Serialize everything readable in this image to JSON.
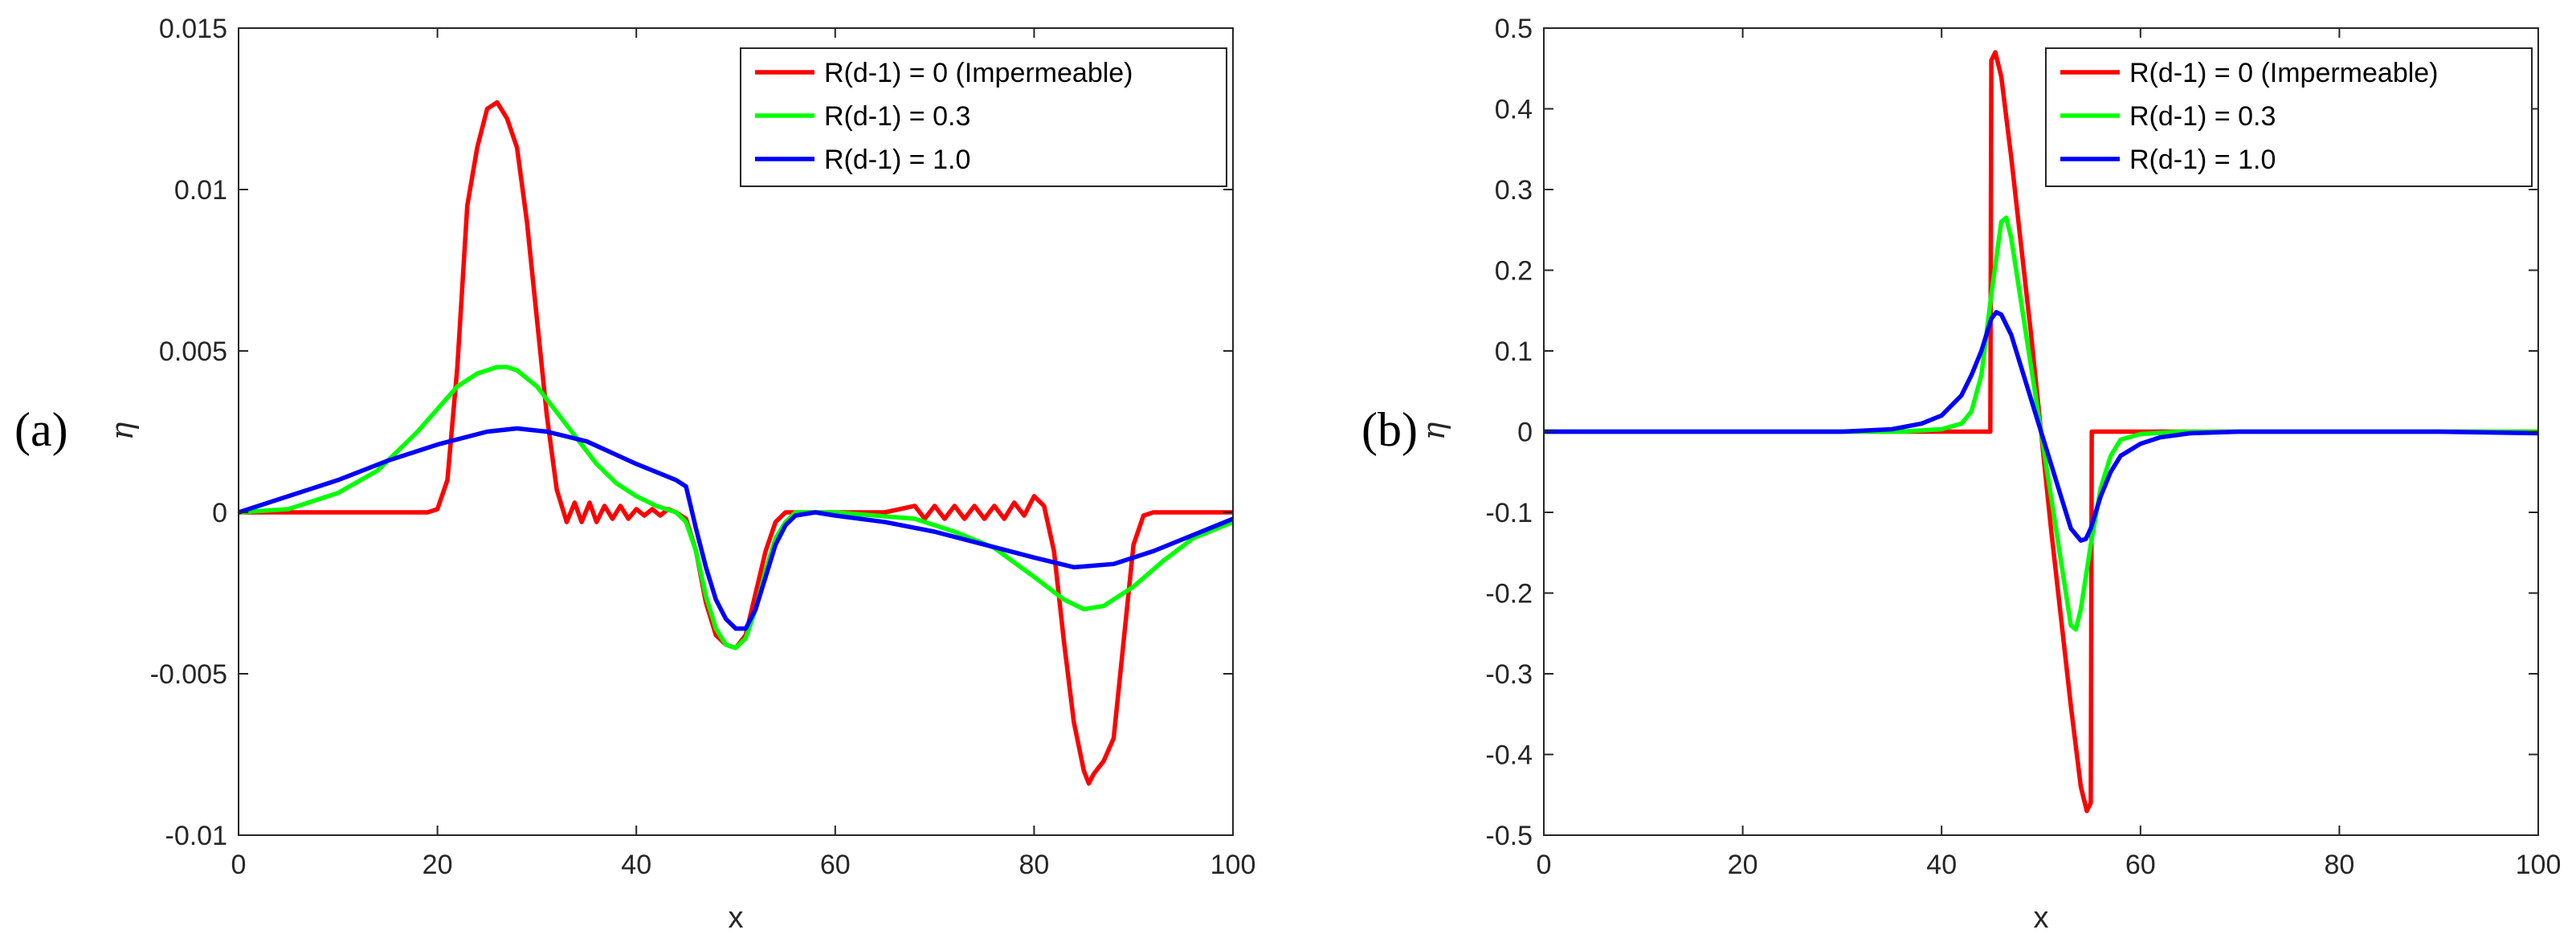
{
  "colors": {
    "impermeable": "#ff0000",
    "r03": "#00ff00",
    "r10": "#0000ff",
    "axis": "#262626",
    "background": "#ffffff"
  },
  "chart_data": [
    {
      "type": "line",
      "panel_label": "(a)",
      "xlabel": "x",
      "ylabel": "η",
      "xlim": [
        0,
        100
      ],
      "ylim": [
        -0.01,
        0.015
      ],
      "xticks": [
        0,
        20,
        40,
        60,
        80,
        100
      ],
      "xtick_labels": [
        "0",
        "20",
        "40",
        "60",
        "80",
        "100"
      ],
      "yticks": [
        -0.01,
        -0.005,
        0,
        0.005,
        0.01,
        0.015
      ],
      "ytick_labels": [
        "-0.01",
        "-0.005",
        "0",
        "0.005",
        "0.01",
        "0.015"
      ],
      "grid": false,
      "legend_position": "top-right",
      "series": [
        {
          "name": "R(d-1) = 0 (Impermeable)",
          "color": "#ff0000",
          "x": [
            0,
            19,
            20,
            21,
            22,
            23,
            24,
            25,
            26,
            27,
            28,
            29,
            30,
            31,
            32,
            33,
            33.8,
            34.5,
            35.3,
            36,
            36.8,
            37.6,
            38.4,
            39.2,
            40,
            40.8,
            41.6,
            42.4,
            43.2,
            44,
            45,
            46,
            47,
            48,
            49,
            50,
            51,
            52,
            53,
            54,
            55,
            60,
            65,
            68,
            69,
            70,
            71,
            72,
            73,
            74,
            75,
            76,
            77,
            78,
            79,
            80,
            81,
            82,
            83,
            84,
            85,
            85.5,
            86,
            87,
            88,
            89,
            90,
            91,
            92,
            94,
            100
          ],
          "y": [
            0,
            0,
            0.0001,
            0.001,
            0.0045,
            0.0095,
            0.0113,
            0.0125,
            0.0127,
            0.0122,
            0.0113,
            0.009,
            0.006,
            0.003,
            0.0007,
            -0.0003,
            0.0003,
            -0.0003,
            0.0003,
            -0.0003,
            0.0002,
            -0.0002,
            0.0002,
            -0.0002,
            0.0001,
            -0.0001,
            0.0001,
            -0.0001,
            0.0001,
            0,
            -0.0002,
            -0.0012,
            -0.0028,
            -0.0038,
            -0.0041,
            -0.0042,
            -0.0038,
            -0.0025,
            -0.0012,
            -0.0003,
            0,
            0,
            0,
            0.0002,
            -0.0002,
            0.0002,
            -0.0002,
            0.0002,
            -0.0002,
            0.0002,
            -0.0002,
            0.0002,
            -0.0002,
            0.0003,
            -0.0001,
            0.0005,
            0.0002,
            -0.0012,
            -0.004,
            -0.0065,
            -0.008,
            -0.0084,
            -0.0081,
            -0.0077,
            -0.007,
            -0.004,
            -0.001,
            -0.0001,
            0,
            0,
            0
          ]
        },
        {
          "name": "R(d-1) = 0.3",
          "color": "#00ff00",
          "x": [
            0,
            5,
            10,
            14,
            18,
            20,
            22,
            24,
            26,
            27,
            28,
            30,
            32,
            34,
            36,
            38,
            40,
            42,
            44,
            45,
            46,
            47,
            48,
            49,
            50,
            51,
            52,
            53,
            54,
            55,
            56,
            60,
            64,
            68,
            72,
            76,
            80,
            83,
            85,
            87,
            90,
            93,
            96,
            100
          ],
          "y": [
            0,
            0.0001,
            0.0006,
            0.0013,
            0.0025,
            0.0032,
            0.0039,
            0.0043,
            0.0045,
            0.0045,
            0.0044,
            0.0039,
            0.0031,
            0.0023,
            0.0015,
            0.0009,
            0.0005,
            0.0002,
            0,
            -0.0003,
            -0.0012,
            -0.0026,
            -0.0036,
            -0.0041,
            -0.0042,
            -0.0039,
            -0.003,
            -0.0018,
            -0.0008,
            -0.0003,
            0,
            0,
            -0.0001,
            -0.0002,
            -0.0006,
            -0.0011,
            -0.002,
            -0.0027,
            -0.003,
            -0.0029,
            -0.0023,
            -0.0015,
            -0.0008,
            -0.0003
          ]
        },
        {
          "name": "R(d-1) = 1.0",
          "color": "#0000ff",
          "x": [
            0,
            5,
            10,
            15,
            20,
            25,
            28,
            31,
            35,
            40,
            44,
            45,
            46,
            47,
            48,
            49,
            50,
            51,
            52,
            53,
            54,
            55,
            56,
            58,
            60,
            65,
            70,
            75,
            80,
            84,
            88,
            92,
            96,
            100
          ],
          "y": [
            0,
            0.0005,
            0.001,
            0.0016,
            0.0021,
            0.0025,
            0.0026,
            0.0025,
            0.0022,
            0.0015,
            0.001,
            0.0008,
            -0.0005,
            -0.0017,
            -0.0027,
            -0.0033,
            -0.0036,
            -0.0036,
            -0.003,
            -0.002,
            -0.001,
            -0.0004,
            -0.0001,
            0,
            -0.0001,
            -0.0003,
            -0.0006,
            -0.001,
            -0.0014,
            -0.0017,
            -0.0016,
            -0.0012,
            -0.0007,
            -0.0002
          ]
        }
      ]
    },
    {
      "type": "line",
      "panel_label": "(b)",
      "xlabel": "x",
      "ylabel": "η",
      "xlim": [
        0,
        100
      ],
      "ylim": [
        -0.5,
        0.5
      ],
      "xticks": [
        0,
        20,
        40,
        60,
        80,
        100
      ],
      "xtick_labels": [
        "0",
        "20",
        "40",
        "60",
        "80",
        "100"
      ],
      "yticks": [
        -0.5,
        -0.4,
        -0.3,
        -0.2,
        -0.1,
        0,
        0.1,
        0.2,
        0.3,
        0.4,
        0.5
      ],
      "ytick_labels": [
        "-0.5",
        "-0.4",
        "-0.3",
        "-0.2",
        "-0.1",
        "0",
        "0.1",
        "0.2",
        "0.3",
        "0.4",
        "0.5"
      ],
      "grid": false,
      "legend_position": "top-right",
      "series": [
        {
          "name": "R(d-1) = 0 (Impermeable)",
          "color": "#ff0000",
          "x": [
            0,
            44.9,
            45.0,
            45.4,
            46,
            47,
            48,
            49,
            50,
            51,
            52,
            53,
            54,
            54.6,
            55.0,
            55.1,
            100
          ],
          "y": [
            0,
            0,
            0.46,
            0.47,
            0.44,
            0.34,
            0.23,
            0.12,
            0,
            -0.12,
            -0.23,
            -0.34,
            -0.44,
            -0.47,
            -0.46,
            0,
            0
          ]
        },
        {
          "name": "R(d-1) = 0.3",
          "color": "#00ff00",
          "x": [
            0,
            36,
            40,
            42,
            43,
            44,
            45,
            46,
            46.5,
            47,
            48,
            49,
            50,
            51,
            52,
            53,
            53.5,
            54,
            55,
            56,
            57,
            58,
            60,
            64,
            70,
            100
          ],
          "y": [
            0,
            0,
            0.003,
            0.01,
            0.025,
            0.07,
            0.17,
            0.26,
            0.265,
            0.24,
            0.16,
            0.08,
            0,
            -0.08,
            -0.16,
            -0.24,
            -0.245,
            -0.22,
            -0.14,
            -0.07,
            -0.03,
            -0.01,
            -0.003,
            0,
            0,
            0
          ]
        },
        {
          "name": "R(d-1) = 1.0",
          "color": "#0000ff",
          "x": [
            0,
            30,
            35,
            38,
            40,
            42,
            43,
            44,
            45,
            45.5,
            46,
            47,
            48,
            49,
            50,
            51,
            52,
            53,
            54,
            54.5,
            55,
            56,
            57,
            58,
            60,
            62,
            65,
            70,
            80,
            90,
            100
          ],
          "y": [
            0,
            0,
            0.003,
            0.01,
            0.02,
            0.045,
            0.07,
            0.1,
            0.14,
            0.148,
            0.145,
            0.12,
            0.08,
            0.04,
            0,
            -0.04,
            -0.08,
            -0.12,
            -0.135,
            -0.133,
            -0.12,
            -0.08,
            -0.05,
            -0.03,
            -0.015,
            -0.007,
            -0.002,
            0,
            0,
            0,
            -0.002
          ]
        }
      ]
    }
  ]
}
